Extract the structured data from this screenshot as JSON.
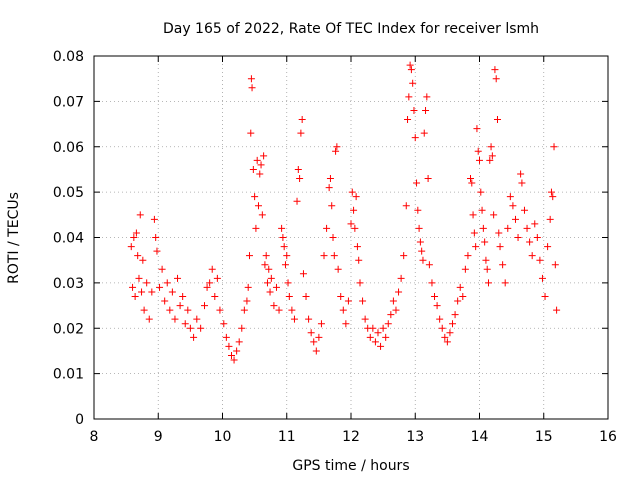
{
  "chart_data": {
    "type": "scatter",
    "title": "Day 165 of 2022, Rate Of TEC Index for receiver lsmh",
    "xlabel": "GPS time / hours",
    "ylabel": "ROTI / TECUs",
    "xlim": [
      8,
      16
    ],
    "ylim": [
      0,
      0.08
    ],
    "x_ticks": [
      8,
      9,
      10,
      11,
      12,
      13,
      14,
      15,
      16
    ],
    "y_ticks": [
      0,
      0.01,
      0.02,
      0.03,
      0.04,
      0.05,
      0.06,
      0.07,
      0.08
    ],
    "x_tick_labels": [
      "8",
      "9",
      "10",
      "11",
      "12",
      "13",
      "14",
      "15",
      "16"
    ],
    "y_tick_labels": [
      "0",
      "0.01",
      "0.02",
      "0.03",
      "0.04",
      "0.05",
      "0.06",
      "0.07",
      "0.08"
    ],
    "grid": true,
    "marker": "+",
    "color": "#ff0000",
    "series": [
      {
        "points": [
          [
            8.58,
            0.038
          ],
          [
            8.6,
            0.029
          ],
          [
            8.62,
            0.04
          ],
          [
            8.64,
            0.027
          ],
          [
            8.66,
            0.041
          ],
          [
            8.68,
            0.036
          ],
          [
            8.7,
            0.031
          ],
          [
            8.72,
            0.045
          ],
          [
            8.74,
            0.028
          ],
          [
            8.76,
            0.035
          ],
          [
            8.78,
            0.024
          ],
          [
            8.82,
            0.03
          ],
          [
            8.86,
            0.022
          ],
          [
            8.9,
            0.028
          ],
          [
            8.94,
            0.044
          ],
          [
            8.96,
            0.04
          ],
          [
            8.98,
            0.037
          ],
          [
            9.02,
            0.029
          ],
          [
            9.06,
            0.033
          ],
          [
            9.1,
            0.026
          ],
          [
            9.14,
            0.03
          ],
          [
            9.18,
            0.024
          ],
          [
            9.22,
            0.028
          ],
          [
            9.26,
            0.022
          ],
          [
            9.3,
            0.031
          ],
          [
            9.34,
            0.025
          ],
          [
            9.38,
            0.027
          ],
          [
            9.42,
            0.021
          ],
          [
            9.46,
            0.024
          ],
          [
            9.5,
            0.02
          ],
          [
            9.55,
            0.018
          ],
          [
            9.6,
            0.022
          ],
          [
            9.66,
            0.02
          ],
          [
            9.72,
            0.025
          ],
          [
            9.76,
            0.029
          ],
          [
            9.8,
            0.03
          ],
          [
            9.84,
            0.033
          ],
          [
            9.88,
            0.027
          ],
          [
            9.92,
            0.031
          ],
          [
            9.96,
            0.024
          ],
          [
            10.02,
            0.021
          ],
          [
            10.06,
            0.018
          ],
          [
            10.1,
            0.016
          ],
          [
            10.14,
            0.014
          ],
          [
            10.18,
            0.013
          ],
          [
            10.22,
            0.015
          ],
          [
            10.26,
            0.017
          ],
          [
            10.3,
            0.02
          ],
          [
            10.34,
            0.024
          ],
          [
            10.38,
            0.026
          ],
          [
            10.4,
            0.029
          ],
          [
            10.42,
            0.036
          ],
          [
            10.44,
            0.063
          ],
          [
            10.45,
            0.075
          ],
          [
            10.46,
            0.073
          ],
          [
            10.48,
            0.055
          ],
          [
            10.5,
            0.049
          ],
          [
            10.52,
            0.042
          ],
          [
            10.54,
            0.057
          ],
          [
            10.56,
            0.047
          ],
          [
            10.58,
            0.054
          ],
          [
            10.6,
            0.056
          ],
          [
            10.62,
            0.045
          ],
          [
            10.64,
            0.058
          ],
          [
            10.66,
            0.034
          ],
          [
            10.68,
            0.036
          ],
          [
            10.7,
            0.03
          ],
          [
            10.72,
            0.033
          ],
          [
            10.74,
            0.028
          ],
          [
            10.76,
            0.031
          ],
          [
            10.8,
            0.025
          ],
          [
            10.84,
            0.029
          ],
          [
            10.88,
            0.024
          ],
          [
            10.92,
            0.042
          ],
          [
            10.94,
            0.04
          ],
          [
            10.96,
            0.038
          ],
          [
            10.98,
            0.034
          ],
          [
            11.0,
            0.036
          ],
          [
            11.02,
            0.03
          ],
          [
            11.04,
            0.027
          ],
          [
            11.08,
            0.024
          ],
          [
            11.12,
            0.022
          ],
          [
            11.16,
            0.048
          ],
          [
            11.18,
            0.055
          ],
          [
            11.2,
            0.053
          ],
          [
            11.22,
            0.063
          ],
          [
            11.24,
            0.066
          ],
          [
            11.26,
            0.032
          ],
          [
            11.3,
            0.027
          ],
          [
            11.34,
            0.022
          ],
          [
            11.38,
            0.019
          ],
          [
            11.42,
            0.017
          ],
          [
            11.46,
            0.015
          ],
          [
            11.5,
            0.018
          ],
          [
            11.54,
            0.021
          ],
          [
            11.58,
            0.036
          ],
          [
            11.62,
            0.042
          ],
          [
            11.66,
            0.051
          ],
          [
            11.68,
            0.053
          ],
          [
            11.7,
            0.047
          ],
          [
            11.72,
            0.04
          ],
          [
            11.74,
            0.036
          ],
          [
            11.76,
            0.059
          ],
          [
            11.78,
            0.06
          ],
          [
            11.8,
            0.033
          ],
          [
            11.84,
            0.027
          ],
          [
            11.88,
            0.024
          ],
          [
            11.92,
            0.021
          ],
          [
            11.96,
            0.026
          ],
          [
            12.0,
            0.043
          ],
          [
            12.02,
            0.05
          ],
          [
            12.04,
            0.046
          ],
          [
            12.06,
            0.042
          ],
          [
            12.08,
            0.049
          ],
          [
            12.1,
            0.038
          ],
          [
            12.12,
            0.035
          ],
          [
            12.14,
            0.03
          ],
          [
            12.18,
            0.026
          ],
          [
            12.22,
            0.022
          ],
          [
            12.26,
            0.02
          ],
          [
            12.3,
            0.018
          ],
          [
            12.34,
            0.02
          ],
          [
            12.38,
            0.017
          ],
          [
            12.42,
            0.019
          ],
          [
            12.46,
            0.016
          ],
          [
            12.5,
            0.02
          ],
          [
            12.54,
            0.018
          ],
          [
            12.58,
            0.021
          ],
          [
            12.62,
            0.023
          ],
          [
            12.66,
            0.026
          ],
          [
            12.7,
            0.024
          ],
          [
            12.74,
            0.028
          ],
          [
            12.78,
            0.031
          ],
          [
            12.82,
            0.036
          ],
          [
            12.86,
            0.047
          ],
          [
            12.88,
            0.066
          ],
          [
            12.9,
            0.071
          ],
          [
            12.92,
            0.078
          ],
          [
            12.94,
            0.077
          ],
          [
            12.96,
            0.074
          ],
          [
            12.98,
            0.068
          ],
          [
            13.0,
            0.062
          ],
          [
            13.02,
            0.052
          ],
          [
            13.04,
            0.046
          ],
          [
            13.06,
            0.042
          ],
          [
            13.08,
            0.039
          ],
          [
            13.1,
            0.037
          ],
          [
            13.12,
            0.035
          ],
          [
            13.14,
            0.063
          ],
          [
            13.16,
            0.068
          ],
          [
            13.18,
            0.071
          ],
          [
            13.2,
            0.053
          ],
          [
            13.22,
            0.034
          ],
          [
            13.26,
            0.03
          ],
          [
            13.3,
            0.027
          ],
          [
            13.34,
            0.025
          ],
          [
            13.38,
            0.022
          ],
          [
            13.42,
            0.02
          ],
          [
            13.46,
            0.018
          ],
          [
            13.5,
            0.017
          ],
          [
            13.54,
            0.019
          ],
          [
            13.58,
            0.021
          ],
          [
            13.62,
            0.023
          ],
          [
            13.66,
            0.026
          ],
          [
            13.7,
            0.029
          ],
          [
            13.74,
            0.027
          ],
          [
            13.78,
            0.033
          ],
          [
            13.82,
            0.036
          ],
          [
            13.86,
            0.053
          ],
          [
            13.88,
            0.052
          ],
          [
            13.9,
            0.045
          ],
          [
            13.92,
            0.041
          ],
          [
            13.94,
            0.038
          ],
          [
            13.96,
            0.064
          ],
          [
            13.98,
            0.059
          ],
          [
            14.0,
            0.057
          ],
          [
            14.02,
            0.05
          ],
          [
            14.04,
            0.046
          ],
          [
            14.06,
            0.042
          ],
          [
            14.08,
            0.039
          ],
          [
            14.1,
            0.035
          ],
          [
            14.12,
            0.033
          ],
          [
            14.14,
            0.03
          ],
          [
            14.16,
            0.057
          ],
          [
            14.18,
            0.06
          ],
          [
            14.2,
            0.058
          ],
          [
            14.22,
            0.045
          ],
          [
            14.24,
            0.077
          ],
          [
            14.26,
            0.075
          ],
          [
            14.28,
            0.066
          ],
          [
            14.3,
            0.041
          ],
          [
            14.32,
            0.038
          ],
          [
            14.36,
            0.034
          ],
          [
            14.4,
            0.03
          ],
          [
            14.44,
            0.042
          ],
          [
            14.48,
            0.049
          ],
          [
            14.52,
            0.047
          ],
          [
            14.56,
            0.044
          ],
          [
            14.6,
            0.04
          ],
          [
            14.64,
            0.054
          ],
          [
            14.66,
            0.052
          ],
          [
            14.7,
            0.046
          ],
          [
            14.74,
            0.042
          ],
          [
            14.78,
            0.039
          ],
          [
            14.82,
            0.036
          ],
          [
            14.86,
            0.043
          ],
          [
            14.9,
            0.04
          ],
          [
            14.94,
            0.035
          ],
          [
            14.98,
            0.031
          ],
          [
            15.02,
            0.027
          ],
          [
            15.06,
            0.038
          ],
          [
            15.1,
            0.044
          ],
          [
            15.12,
            0.05
          ],
          [
            15.14,
            0.049
          ],
          [
            15.16,
            0.06
          ],
          [
            15.18,
            0.034
          ],
          [
            15.2,
            0.024
          ]
        ]
      }
    ]
  }
}
